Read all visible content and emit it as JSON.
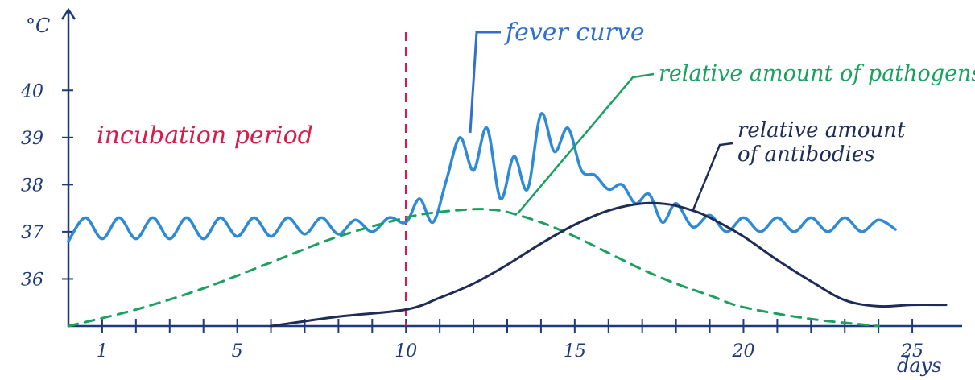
{
  "chart_data": {
    "type": "line",
    "title": "",
    "xlabel": "days",
    "ylabel": "°C",
    "x_ticks": [
      1,
      5,
      10,
      15,
      20,
      25
    ],
    "y_ticks": [
      36,
      37,
      38,
      39,
      40
    ],
    "xlim": [
      0,
      26
    ],
    "ylim": [
      35,
      41.2
    ],
    "marker": {
      "x": 10,
      "label": "incubation period",
      "color": "#d81b4a"
    },
    "series": [
      {
        "name": "fever curve",
        "color": "#2f8ad6",
        "x": [
          0,
          0.5,
          1,
          1.5,
          2,
          2.5,
          3,
          3.5,
          4,
          4.5,
          5,
          5.5,
          6,
          6.5,
          7,
          7.5,
          8,
          8.5,
          9,
          9.5,
          10,
          10.4,
          10.8,
          11.2,
          11.6,
          12,
          12.4,
          12.8,
          13.2,
          13.6,
          14,
          14.4,
          14.8,
          15.2,
          15.6,
          16,
          16.4,
          16.8,
          17.2,
          17.6,
          18,
          18.5,
          19,
          19.5,
          20,
          20.5,
          21,
          21.5,
          22,
          22.5,
          23,
          23.5,
          24,
          24.5
        ],
        "y": [
          36.8,
          37.3,
          36.85,
          37.3,
          36.85,
          37.3,
          36.85,
          37.3,
          36.85,
          37.3,
          36.9,
          37.3,
          36.9,
          37.3,
          36.95,
          37.3,
          36.95,
          37.25,
          37.0,
          37.3,
          37.2,
          37.7,
          37.2,
          38.1,
          39.0,
          38.3,
          39.2,
          37.7,
          38.6,
          37.9,
          39.5,
          38.7,
          39.2,
          38.3,
          38.2,
          37.9,
          38.0,
          37.6,
          37.8,
          37.2,
          37.6,
          37.1,
          37.35,
          37.0,
          37.3,
          37.0,
          37.3,
          37.0,
          37.3,
          37.0,
          37.3,
          37.0,
          37.25,
          37.05
        ]
      },
      {
        "name": "relative amount of pathogens",
        "color": "#1aa060",
        "x": [
          0,
          2,
          4,
          6,
          8,
          10,
          11,
          12,
          12.5,
          13,
          14,
          15,
          16,
          17,
          18,
          19,
          20,
          22,
          24
        ],
        "y": [
          35.0,
          35.35,
          35.8,
          36.35,
          36.9,
          37.3,
          37.42,
          37.48,
          37.47,
          37.42,
          37.2,
          36.9,
          36.55,
          36.2,
          35.9,
          35.65,
          35.4,
          35.15,
          35.0
        ]
      },
      {
        "name": "relative amount of antibodies",
        "color": "#1f2c55",
        "x": [
          6,
          8,
          10,
          11,
          12,
          13,
          14,
          15,
          16,
          17,
          17.8,
          18.5,
          19,
          20,
          21,
          22,
          23,
          24,
          25,
          26
        ],
        "y": [
          35.0,
          35.2,
          35.35,
          35.6,
          35.9,
          36.3,
          36.75,
          37.15,
          37.45,
          37.6,
          37.58,
          37.45,
          37.3,
          36.9,
          36.4,
          35.95,
          35.55,
          35.42,
          35.45,
          35.45
        ]
      }
    ]
  }
}
